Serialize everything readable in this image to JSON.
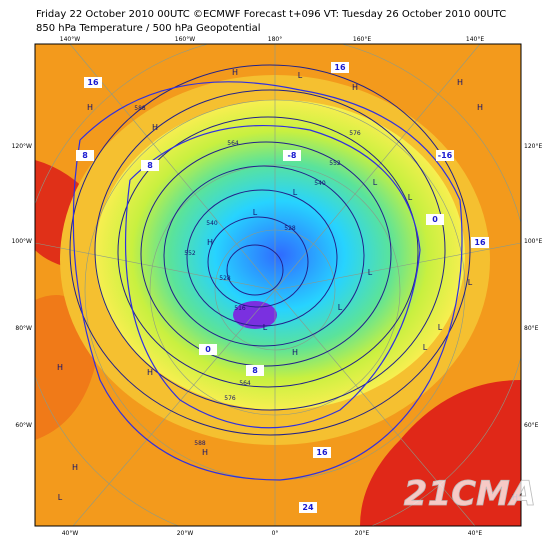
{
  "header": {
    "line1": "Friday 22 October 2010 00UTC ©ECMWF Forecast t+096 VT: Tuesday 26 October 2010 00UTC",
    "line2": "850 hPa Temperature / 500 hPa Geopotential"
  },
  "top_labels": [
    "140°W",
    "160°W",
    "180°",
    "160°E",
    "140°E"
  ],
  "bottom_labels": [
    "40°W",
    "20°W",
    "0°",
    "20°E",
    "40°E"
  ],
  "left_labels": [
    "120°W",
    "100°W",
    "80°W",
    "60°W"
  ],
  "right_labels": [
    "120°E",
    "100°E",
    "80°E",
    "60°E"
  ],
  "pressure_labels": [
    "H",
    "H",
    "H",
    "L",
    "H",
    "L",
    "L",
    "H",
    "H",
    "L",
    "L",
    "H",
    "L",
    "H",
    "L",
    "H",
    "L",
    "L",
    "H",
    "H",
    "L",
    "H",
    "L",
    "H",
    "L"
  ],
  "temperature_labels": [
    "16",
    "16",
    "8",
    "-16",
    "16",
    "0",
    "-8",
    "0",
    "8",
    "16",
    "24",
    "8"
  ],
  "geopotential_labels": [
    "588",
    "576",
    "564",
    "552",
    "540",
    "528",
    "516",
    "528",
    "540",
    "552",
    "564",
    "576",
    "588"
  ],
  "watermark": "21CMA"
}
